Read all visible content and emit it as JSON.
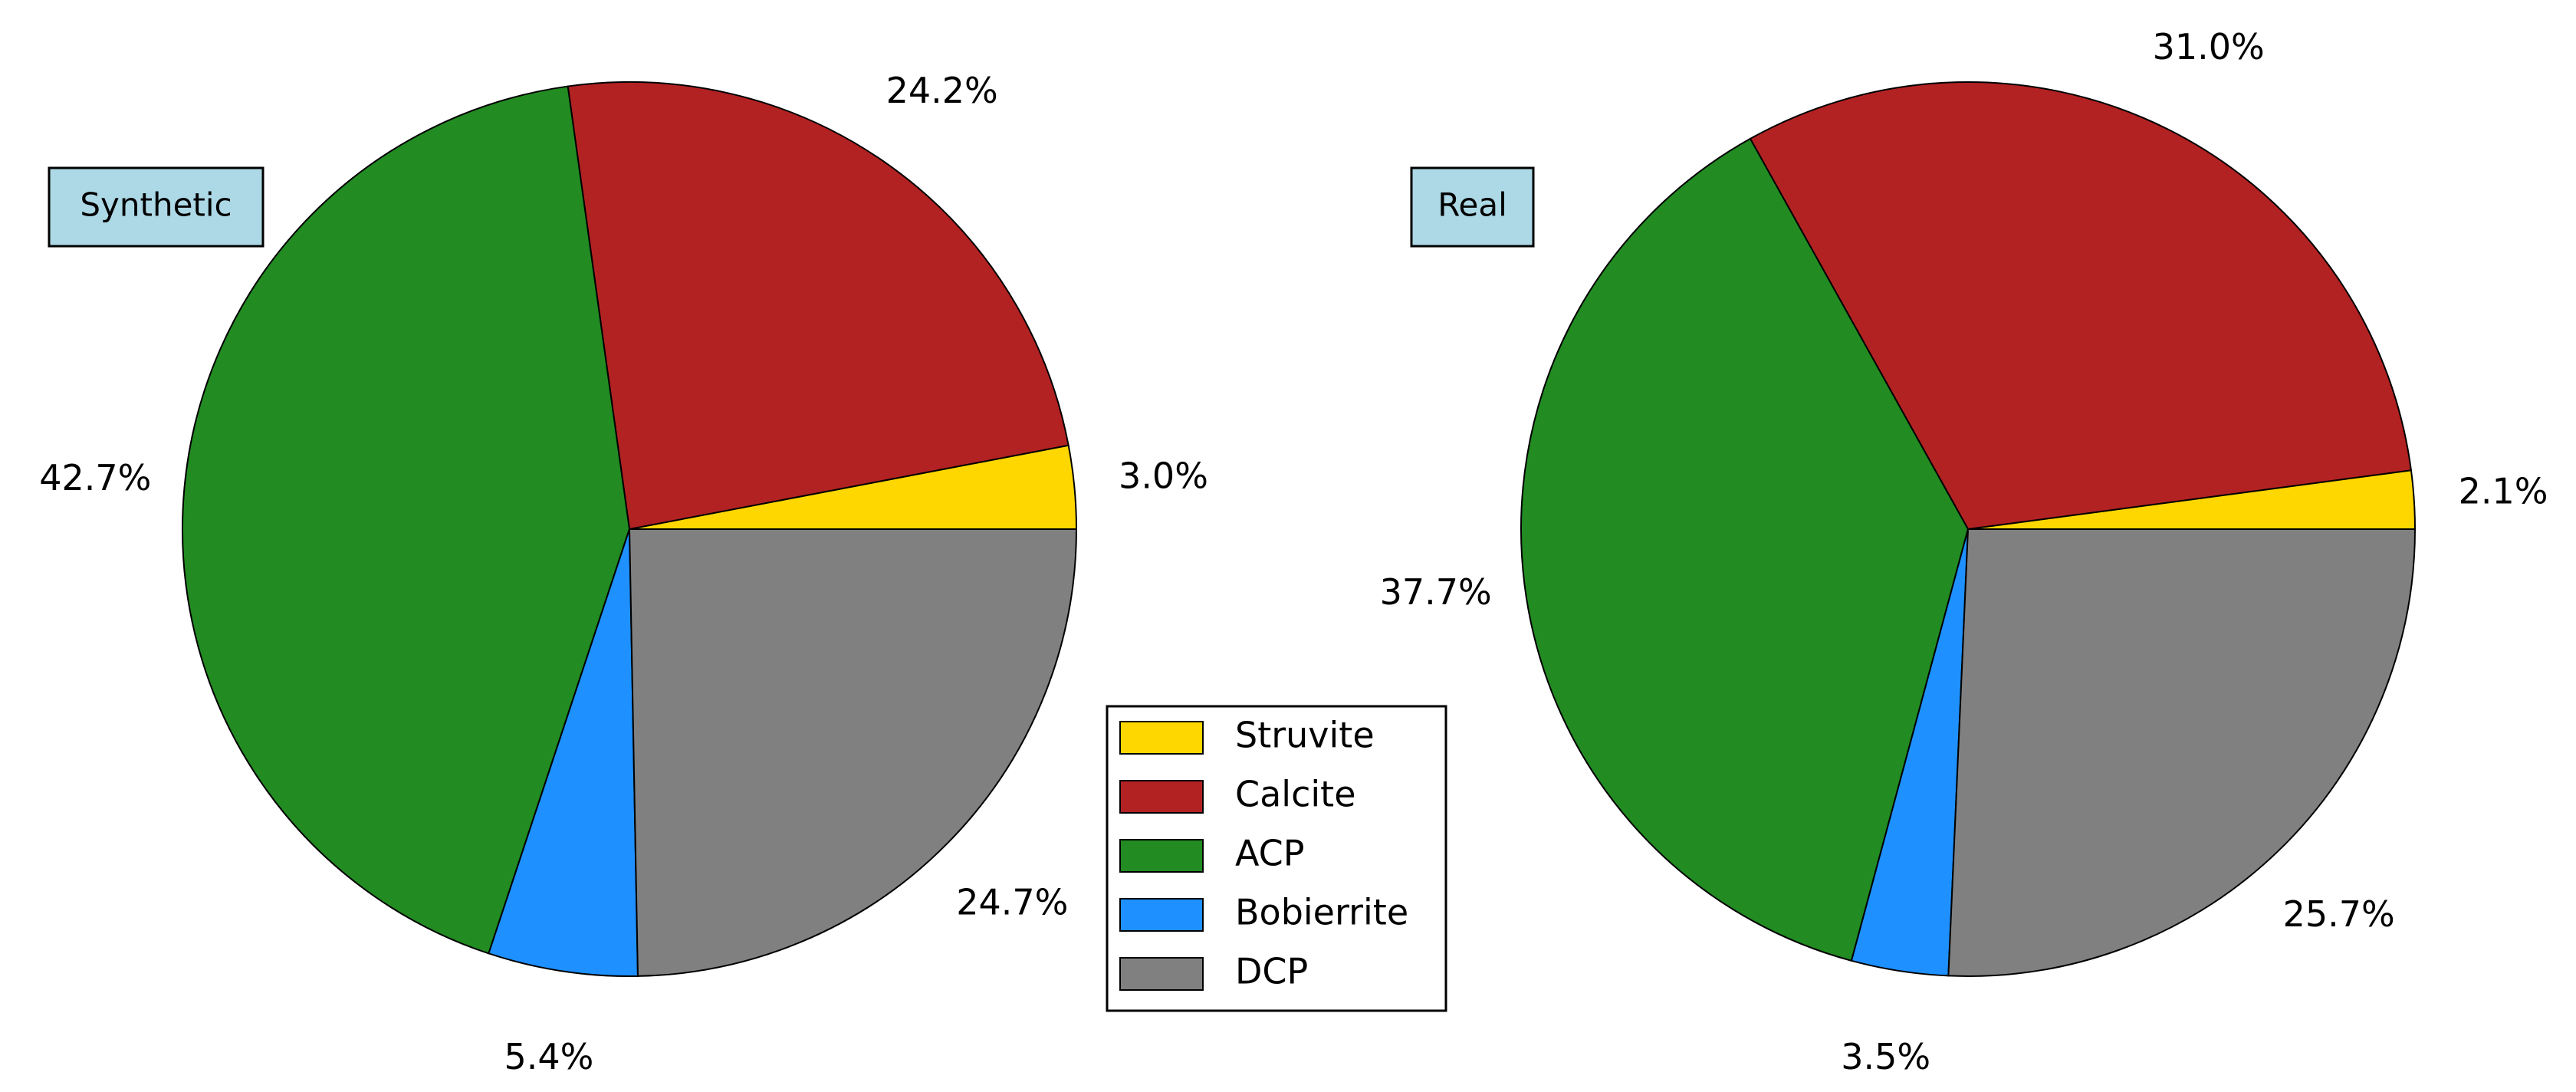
{
  "chart_data": [
    {
      "type": "pie",
      "label": "Synthetic",
      "categories": [
        "Struvite",
        "Calcite",
        "ACP",
        "Bobierrite",
        "DCP"
      ],
      "values": [
        3.0,
        24.2,
        42.7,
        5.4,
        24.7
      ],
      "value_labels": [
        "3.0%",
        "24.2%",
        "42.7%",
        "5.4%",
        "24.7%"
      ],
      "colors": [
        "#ffd700",
        "#b22222",
        "#228b22",
        "#1e90ff",
        "#808080"
      ],
      "legend": true
    },
    {
      "type": "pie",
      "label": "Real",
      "categories": [
        "Struvite",
        "Calcite",
        "ACP",
        "Bobierrite",
        "DCP"
      ],
      "values": [
        2.1,
        31.0,
        37.7,
        3.5,
        25.7
      ],
      "value_labels": [
        "2.1%",
        "31.0%",
        "37.7%",
        "3.5%",
        "25.7%"
      ],
      "colors": [
        "#ffd700",
        "#b22222",
        "#228b22",
        "#1e90ff",
        "#808080"
      ],
      "legend": false
    }
  ]
}
